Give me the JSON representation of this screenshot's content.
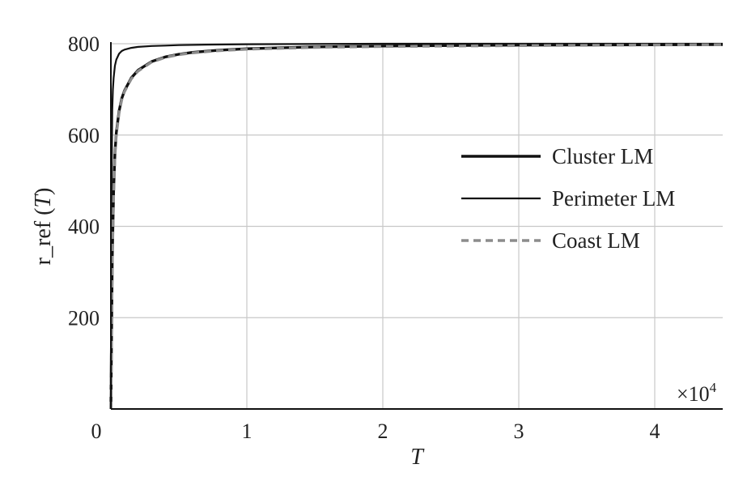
{
  "chart_data": {
    "type": "line",
    "title": "",
    "xlabel": "T",
    "ylabel": "r_ref (T)",
    "x_multiplier_label": "×10",
    "x_multiplier_exponent": "4",
    "xlim": [
      0,
      45000
    ],
    "ylim": [
      0,
      800
    ],
    "x_ticks": [
      0,
      10000,
      20000,
      30000,
      40000
    ],
    "x_tick_labels": [
      "0",
      "1",
      "2",
      "3",
      "4"
    ],
    "y_ticks": [
      200,
      400,
      600,
      800
    ],
    "y_tick_labels": [
      "200",
      "400",
      "600",
      "800"
    ],
    "grid": true,
    "legend_position": "center-right",
    "series": [
      {
        "name": "Cluster LM",
        "style": "solid-thick",
        "color": "#111111",
        "x": [
          0,
          100,
          200,
          300,
          400,
          600,
          800,
          1000,
          1500,
          2000,
          3000,
          4000,
          5000,
          6000,
          8000,
          10000,
          15000,
          20000,
          30000,
          45000
        ],
        "y": [
          0,
          330,
          480,
          560,
          605,
          652,
          680,
          697,
          725,
          742,
          761,
          771,
          777,
          781,
          786,
          789,
          793,
          795,
          797,
          798
        ]
      },
      {
        "name": "Perimeter LM",
        "style": "solid-thin",
        "color": "#111111",
        "x": [
          0,
          50,
          100,
          150,
          200,
          300,
          400,
          600,
          800,
          1000,
          1500,
          2000,
          3000,
          4000,
          5000,
          7000,
          10000,
          20000,
          45000
        ],
        "y": [
          0,
          480,
          655,
          700,
          725,
          752,
          765,
          778,
          784,
          787,
          791,
          793,
          795,
          796,
          797,
          798,
          799,
          800,
          800
        ]
      },
      {
        "name": "Coast LM",
        "style": "dashed",
        "color": "#8c8c8c",
        "x": [
          0,
          100,
          200,
          300,
          400,
          600,
          800,
          1000,
          1500,
          2000,
          3000,
          4000,
          5000,
          6000,
          8000,
          10000,
          15000,
          20000,
          30000,
          45000
        ],
        "y": [
          0,
          320,
          470,
          553,
          600,
          648,
          677,
          695,
          723,
          740,
          760,
          770,
          776,
          780,
          785,
          788,
          792,
          794,
          796,
          798
        ]
      }
    ]
  }
}
